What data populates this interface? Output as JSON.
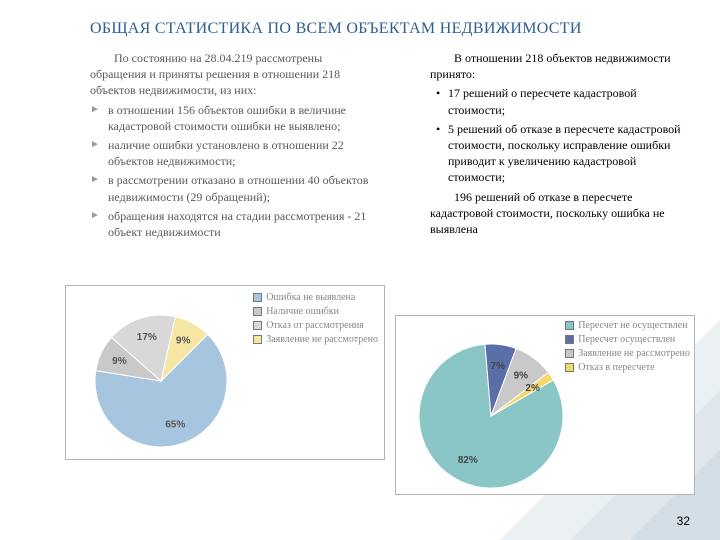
{
  "title": "ОБЩАЯ СТАТИСТИКА ПО ВСЕМ ОБЪЕКТАМ НЕДВИЖИМОСТИ",
  "page_number": "32",
  "left_block": {
    "intro": "По состоянию на 28.04.219 рассмотрены обращения и приняты решения в отношении 218 объектов недвижимости, из них:",
    "items": [
      "в отношении 156 объектов ошибки в величине кадастровой стоимости ошибки не выявлено;",
      "наличие ошибки установлено в отношении 22 объектов недвижимости;",
      "в рассмотрении отказано в отношении 40 объектов недвижимости (29 обращений);",
      "обращения находятся на стадии рассмотрения - 21 объект недвижимости"
    ]
  },
  "right_block": {
    "intro": "В отношении 218 объектов недвижимости принято:",
    "items": [
      "17 решений о пересчете кадастровой стоимости;",
      "5 решений об отказе в пересчете кадастровой стоимости, поскольку исправление ошибки приводит к увеличению кадастровой стоимости;"
    ],
    "tail": "196 решений об отказе в пересчете кадастровой стоимости, поскольку ошибка не выявлена"
  },
  "chart_left": {
    "type": "pie",
    "legend": [
      {
        "label": "Ошибка не выявлена",
        "color": "#a7c5df"
      },
      {
        "label": "Наличие ошибки",
        "color": "#c9c9c9"
      },
      {
        "label": "Отказ от рассмотрения",
        "color": "#d8d8d8"
      },
      {
        "label": "Заявление не рассмотрено",
        "color": "#f5e7a3"
      }
    ],
    "slices": [
      {
        "pct": 65,
        "color": "#a7c5df",
        "label": "65%"
      },
      {
        "pct": 9,
        "color": "#c9c9c9",
        "label": "9%"
      },
      {
        "pct": 17,
        "color": "#d8d8d8",
        "label": "17%"
      },
      {
        "pct": 9,
        "color": "#f5e7a3",
        "label": "9%"
      }
    ],
    "background": "#ffffff",
    "border_color": "#b4b4b4"
  },
  "chart_right": {
    "type": "pie",
    "legend": [
      {
        "label": "Пересчет не осуществлен",
        "color": "#8bc6c6"
      },
      {
        "label": "Пересчет осуществлен",
        "color": "#5a6ea8"
      },
      {
        "label": "Заявление не рассмотрено",
        "color": "#c9c9c9"
      },
      {
        "label": "Отказ в пересчете",
        "color": "#f2d96b"
      }
    ],
    "slices": [
      {
        "pct": 82,
        "color": "#8bc6c6",
        "label": "82%"
      },
      {
        "pct": 7,
        "color": "#5a6ea8",
        "label": "7%"
      },
      {
        "pct": 9,
        "color": "#c9c9c9",
        "label": "9%"
      },
      {
        "pct": 2,
        "color": "#f2d96b",
        "label": "2%"
      }
    ],
    "background": "#ffffff",
    "border_color": "#b4b4b4"
  }
}
